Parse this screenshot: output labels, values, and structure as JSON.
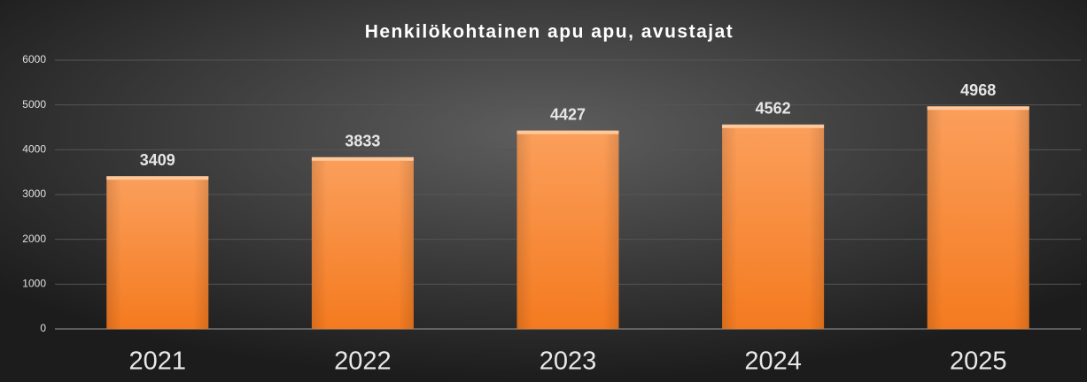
{
  "chart_data": {
    "type": "bar",
    "title": "Henkilökohtainen apu apu, avustajat",
    "categories": [
      "2021",
      "2022",
      "2023",
      "2024",
      "2025"
    ],
    "values": [
      3409,
      3833,
      4427,
      4562,
      4968
    ],
    "color": "#f7862f",
    "ylim": [
      0,
      6000
    ],
    "yticks": [
      0,
      1000,
      2000,
      3000,
      4000,
      5000,
      6000
    ],
    "grid": true
  }
}
